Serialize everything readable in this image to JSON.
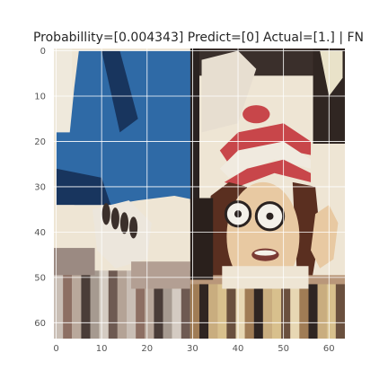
{
  "chart_data": {
    "type": "image",
    "title": "Probabillity=[0.004343] Predict=[0] Actual=[1.] | FN",
    "image_size": [
      64,
      64
    ],
    "xlim": [
      -0.5,
      63.5
    ],
    "ylim": [
      63.5,
      -0.5
    ],
    "x_ticks": [
      0,
      10,
      20,
      30,
      40,
      50,
      60
    ],
    "y_ticks": [
      0,
      10,
      20,
      30,
      40,
      50,
      60
    ],
    "x_tick_labels": [
      "0",
      "10",
      "20",
      "30",
      "40",
      "50",
      "60"
    ],
    "y_tick_labels": [
      "0",
      "10",
      "20",
      "30",
      "40",
      "50",
      "60"
    ],
    "grid": true,
    "grid_color": "#ffffff",
    "tick_label_color": "#555555",
    "title_color": "#262626",
    "image_content": "cropped cartoon panel: blue coat on the left, figure with red-and-white striped hat, round glasses and a raised hand on the right",
    "palette": {
      "blue": "#2f6aa6",
      "dark_blue": "#18355e",
      "red": "#c8464a",
      "skin": "#e8c9a2",
      "cream": "#eee5d4",
      "dark": "#2a2220",
      "tan": "#b9977a",
      "olive": "#8b8c6c"
    }
  }
}
